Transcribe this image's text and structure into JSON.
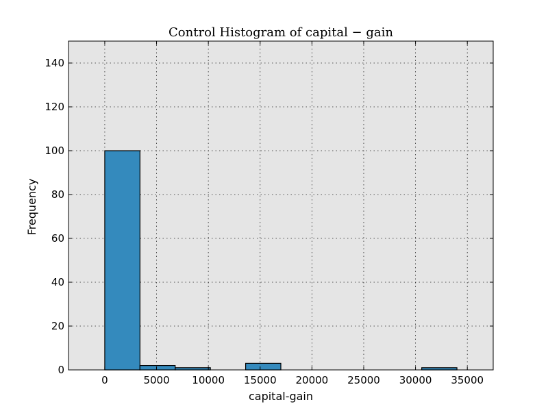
{
  "chart_data": {
    "type": "bar",
    "title": "Control Histogram of capital − gain",
    "xlabel": "capital-gain",
    "ylabel": "Frequency",
    "xlim": [
      -3500,
      37500
    ],
    "ylim": [
      0,
      150
    ],
    "xticks": [
      0,
      5000,
      10000,
      15000,
      20000,
      25000,
      30000,
      35000
    ],
    "yticks": [
      0,
      20,
      40,
      60,
      80,
      100,
      120,
      140
    ],
    "grid": true,
    "bins": [
      {
        "x0": 0,
        "x1": 3400,
        "value": 100
      },
      {
        "x0": 3400,
        "x1": 6800,
        "value": 2
      },
      {
        "x0": 6800,
        "x1": 10200,
        "value": 1
      },
      {
        "x0": 13600,
        "x1": 17000,
        "value": 3
      },
      {
        "x0": 30600,
        "x1": 34000,
        "value": 1
      }
    ]
  },
  "colors": {
    "bar": "#348ABD",
    "plot_background": "#E5E5E5"
  }
}
